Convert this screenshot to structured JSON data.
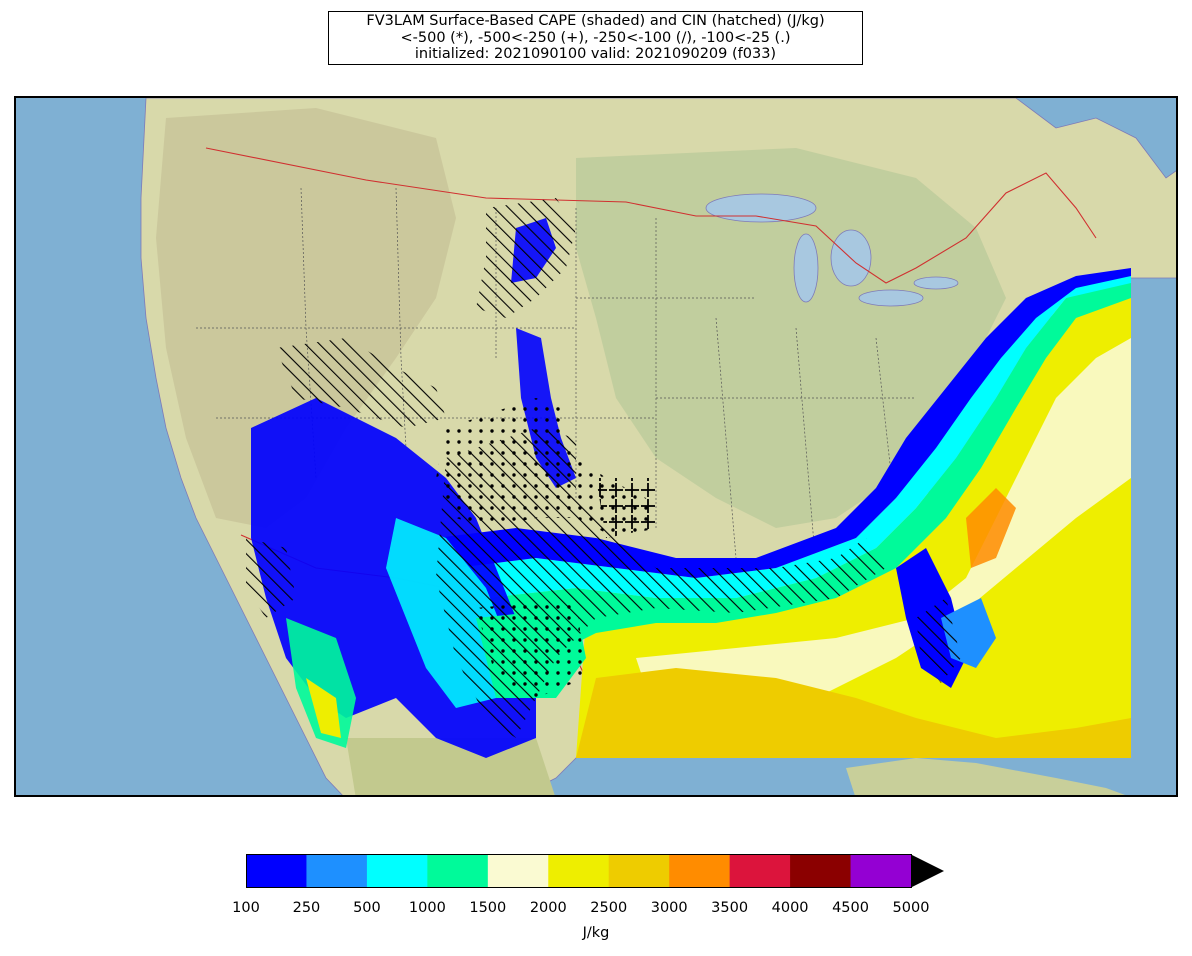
{
  "title": {
    "line1": "FV3LAM Surface-Based CAPE (shaded) and CIN (hatched) (J/kg)",
    "line2": "<-500 (*), -500<-250 (+), -250<-100 (/), -100<-25 (.)",
    "line3": "initialized: 2021090100 valid: 2021090209 (f033)"
  },
  "map": {
    "ocean_color": "#7fb0d3",
    "land_color": "#d8d9aa",
    "border_color": "#d03030",
    "lake_color": "#a8c8e0"
  },
  "colorbar": {
    "unit": "J/kg",
    "extend": "max",
    "ticks": [
      "100",
      "250",
      "500",
      "1000",
      "1500",
      "2000",
      "2500",
      "3000",
      "3500",
      "4000",
      "4500",
      "5000"
    ],
    "colors": [
      "#0000ff",
      "#1e90ff",
      "#00ffff",
      "#00fa9a",
      "#fafad2",
      "#eeee00",
      "#eecc00",
      "#ff8c00",
      "#dc143c",
      "#8b0000",
      "#9400d3"
    ],
    "extend_color": "#000000"
  }
}
